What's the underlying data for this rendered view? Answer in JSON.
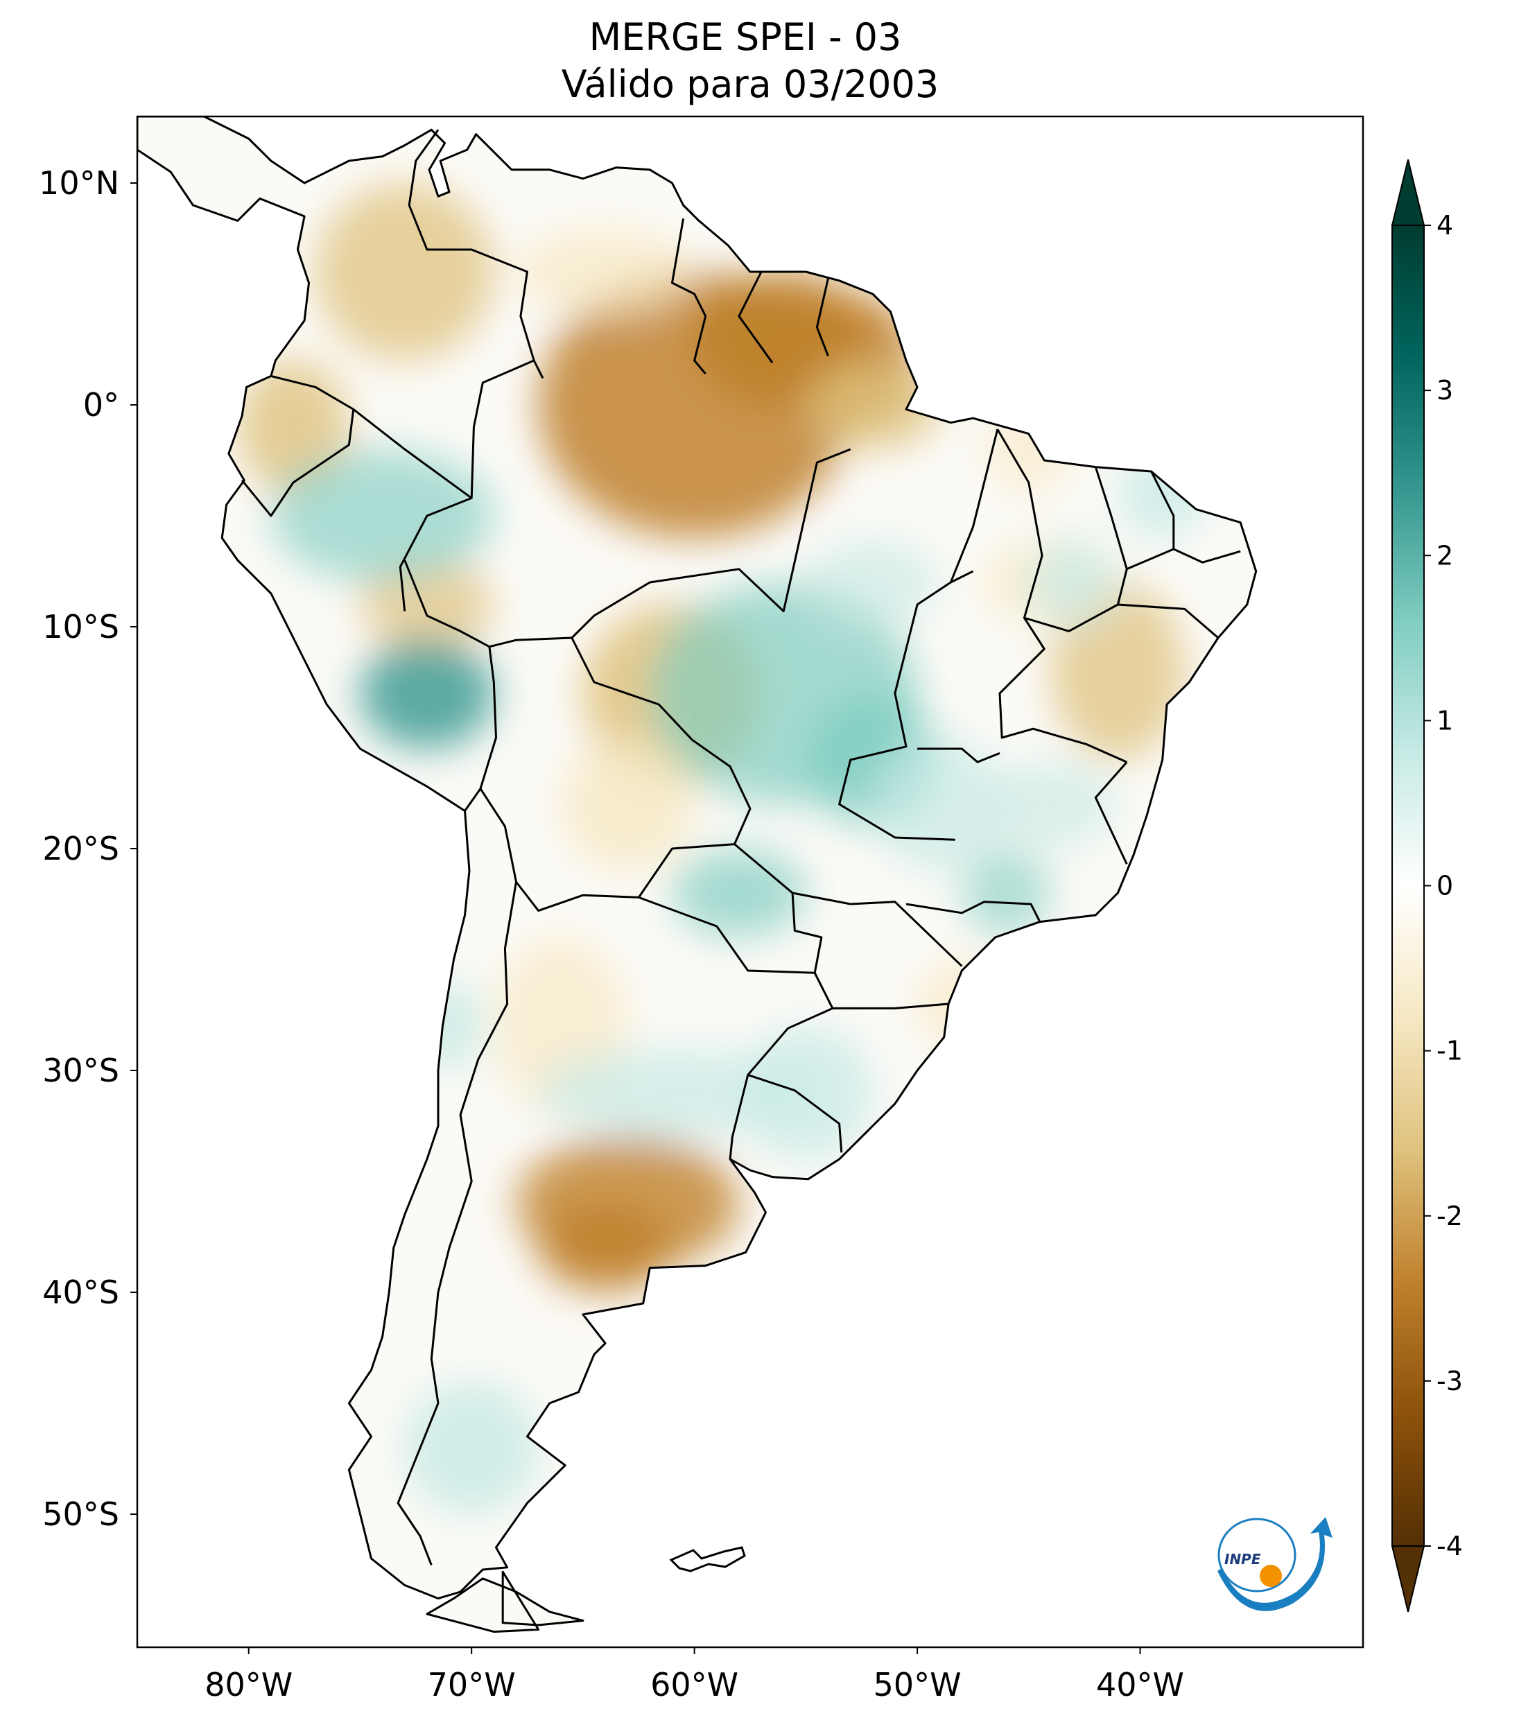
{
  "title": {
    "line1": "MERGE   SPEI - 03",
    "line2": "Válido para 03/2003"
  },
  "map": {
    "type": "choropleth-raster",
    "variable": "SPEI - 03",
    "region": "South America",
    "lon_range": [
      -85,
      -30
    ],
    "lat_range": [
      -56,
      13
    ],
    "lat_ticks": [
      {
        "value": 10,
        "label": "10°N"
      },
      {
        "value": 0,
        "label": "0°"
      },
      {
        "value": -10,
        "label": "10°S"
      },
      {
        "value": -20,
        "label": "20°S"
      },
      {
        "value": -30,
        "label": "30°S"
      },
      {
        "value": -40,
        "label": "40°S"
      },
      {
        "value": -50,
        "label": "50°S"
      }
    ],
    "lon_ticks": [
      {
        "value": -80,
        "label": "80°W"
      },
      {
        "value": -70,
        "label": "70°W"
      },
      {
        "value": -60,
        "label": "60°W"
      },
      {
        "value": -50,
        "label": "50°W"
      },
      {
        "value": -40,
        "label": "40°W"
      }
    ]
  },
  "colorbar": {
    "min": -4,
    "max": 4,
    "extend": "both",
    "colormap": "BrBG",
    "ticks": [
      {
        "value": 4,
        "label": "4"
      },
      {
        "value": 3,
        "label": "3"
      },
      {
        "value": 2,
        "label": "2"
      },
      {
        "value": 1,
        "label": "1"
      },
      {
        "value": 0,
        "label": "0"
      },
      {
        "value": -1,
        "label": "-1"
      },
      {
        "value": -2,
        "label": "-2"
      },
      {
        "value": -3,
        "label": "-3"
      },
      {
        "value": -4,
        "label": "-4"
      }
    ],
    "colors": {
      "dry_extreme": "#543005",
      "dry_strong": "#8c510a",
      "dry": "#bf812d",
      "dry_mild": "#dfc27d",
      "dry_light": "#f6e8c3",
      "neutral": "#f5f5f5",
      "wet_light": "#c7eae5",
      "wet_mild": "#80cdc1",
      "wet": "#35978f",
      "wet_strong": "#01665e",
      "wet_extreme": "#003c30"
    }
  },
  "logo": {
    "text": "INPE",
    "colors": {
      "arrow": "#1a7fc1",
      "dot": "#f39200"
    }
  }
}
